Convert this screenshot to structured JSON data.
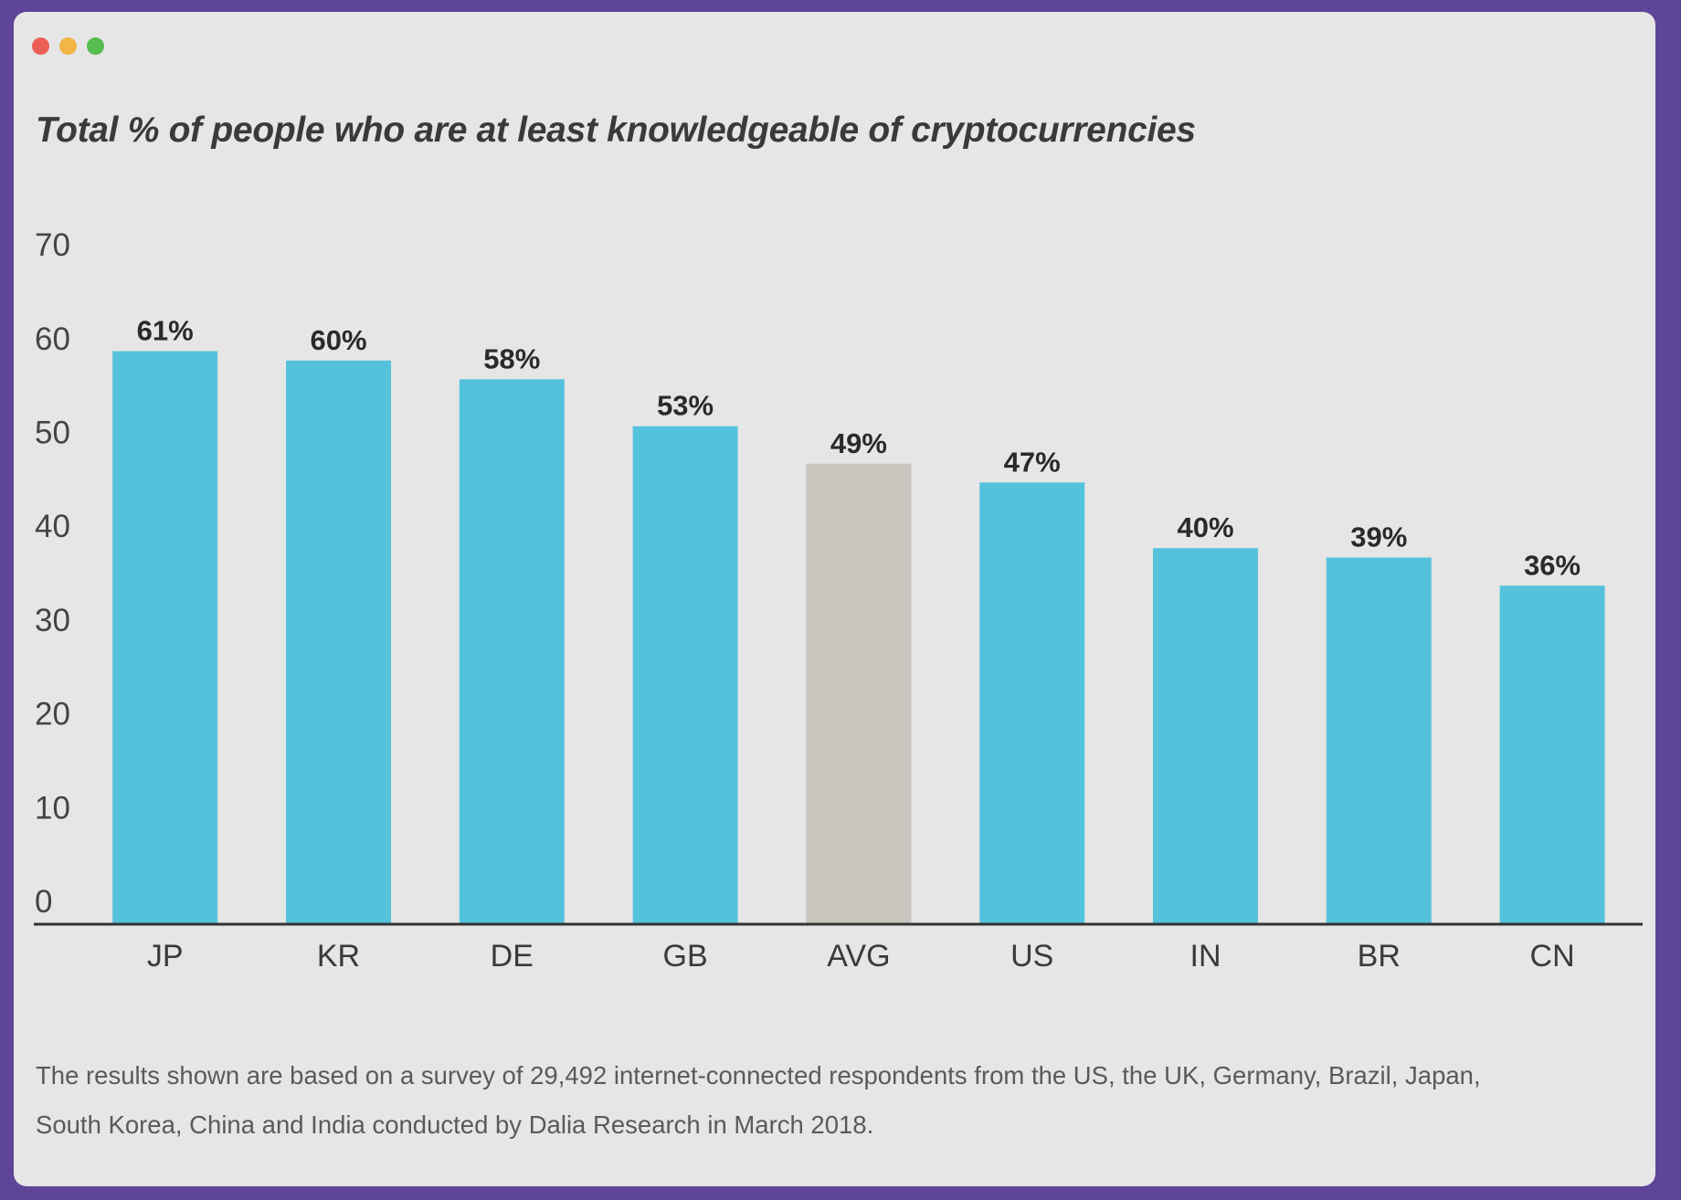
{
  "window": {
    "controls": [
      {
        "name": "close",
        "color": "#ec5f57"
      },
      {
        "name": "minimize",
        "color": "#f1b548"
      },
      {
        "name": "maximize",
        "color": "#56bd4e"
      }
    ]
  },
  "chart_data": {
    "type": "bar",
    "title": "Total % of people who are at least knowledgeable of cryptocurrencies",
    "categories": [
      "JP",
      "KR",
      "DE",
      "GB",
      "AVG",
      "US",
      "IN",
      "BR",
      "CN"
    ],
    "values": [
      61,
      60,
      58,
      53,
      49,
      47,
      40,
      39,
      36
    ],
    "data_labels": [
      "61%",
      "60%",
      "58%",
      "53%",
      "49%",
      "47%",
      "40%",
      "39%",
      "36%"
    ],
    "bar_colors": [
      "#55c2dc",
      "#55c2dc",
      "#55c2dc",
      "#55c2dc",
      "#c8c5bf",
      "#55c2dc",
      "#55c2dc",
      "#55c2dc",
      "#55c2dc"
    ],
    "xlabel": "",
    "ylabel": "",
    "ylim": [
      0,
      70
    ],
    "yticks": [
      0,
      10,
      20,
      30,
      40,
      50,
      60,
      70
    ],
    "grid": false,
    "legend": "none"
  },
  "footnote": {
    "line1": "The results shown are based on a survey of 29,492 internet-connected respondents from the US, the UK, Germany, Brazil, Japan,",
    "line2": "South Korea, China and India conducted by Dalia Research in March 2018."
  },
  "colors": {
    "background": "#5e4597",
    "panel": "#e6e6e6",
    "bar": "#55c2dc",
    "average_bar": "#c8c5bf"
  }
}
